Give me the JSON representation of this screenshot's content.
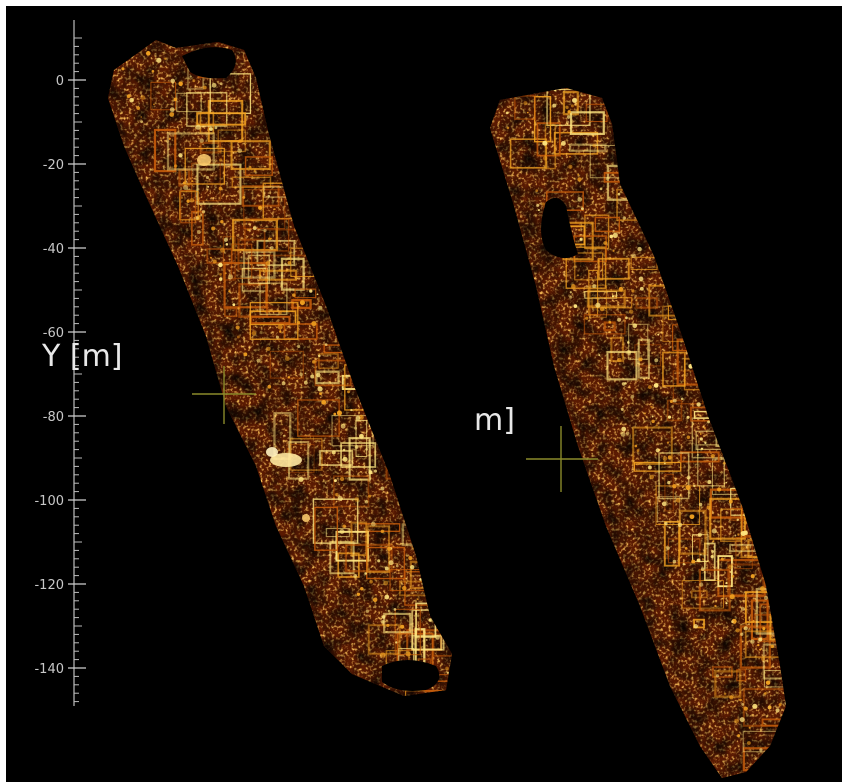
{
  "viewer": {
    "y_axis_title": "Y [m]",
    "second_axis_title_fragment": "m]",
    "y_ticks": [
      0,
      -20,
      -40,
      -60,
      -80,
      -100,
      -120,
      -140
    ],
    "y_range": [
      10,
      -150
    ],
    "colormap": [
      "#1a0500",
      "#5a1600",
      "#8a2e04",
      "#c25a0a",
      "#f0a020",
      "#ffe680"
    ],
    "crosshair_color": "#8a8a2a",
    "background_color": "#000000",
    "scan_strips": [
      {
        "name": "left-scan-strip"
      },
      {
        "name": "right-scan-strip"
      }
    ]
  }
}
